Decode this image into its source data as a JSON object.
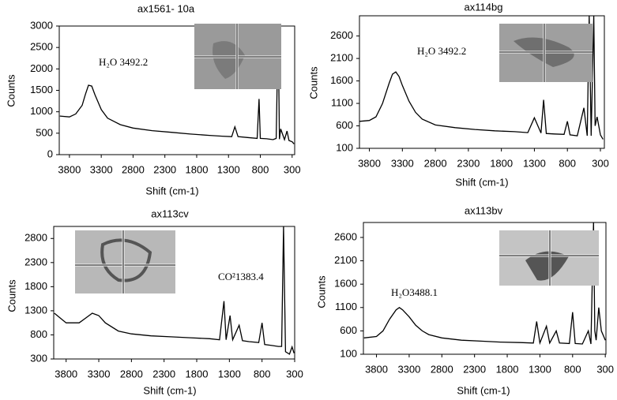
{
  "chart_data": [
    {
      "type": "line",
      "title": "ax1561- 10a",
      "xlabel": "Shift (cm-1)",
      "ylabel": "Counts",
      "annotation": "H₂O 3492.2",
      "color": "#000000",
      "xlim": [
        3960,
        260
      ],
      "xticks": [
        3800,
        3300,
        2800,
        2300,
        1800,
        1300,
        800,
        300
      ],
      "ylim": [
        0,
        3000
      ],
      "yticks": [
        0,
        500,
        1000,
        1500,
        2000,
        2500,
        3000
      ],
      "x": [
        3950,
        3800,
        3700,
        3600,
        3550,
        3500,
        3450,
        3400,
        3300,
        3200,
        3000,
        2800,
        2500,
        2200,
        1900,
        1600,
        1400,
        1250,
        1200,
        1150,
        1000,
        850,
        820,
        800,
        700,
        600,
        550,
        520,
        500,
        480,
        420,
        380,
        350,
        300,
        270
      ],
      "values": [
        900,
        880,
        950,
        1150,
        1400,
        1620,
        1600,
        1400,
        1050,
        850,
        700,
        620,
        560,
        520,
        480,
        450,
        430,
        420,
        650,
        420,
        400,
        380,
        1300,
        380,
        370,
        350,
        380,
        3000,
        360,
        600,
        350,
        550,
        330,
        300,
        250
      ]
    },
    {
      "type": "line",
      "title": "ax114bg",
      "xlabel": "Shift (cm-1)",
      "ylabel": "Counts",
      "annotation": "H₂O 3492.2",
      "color": "#000000",
      "xlim": [
        3950,
        240
      ],
      "xticks": [
        3800,
        3300,
        2800,
        2300,
        1800,
        1300,
        800,
        300
      ],
      "ylim": [
        100,
        3050
      ],
      "yticks": [
        100,
        600,
        1100,
        1600,
        2100,
        2600
      ],
      "x": [
        3950,
        3800,
        3700,
        3600,
        3500,
        3450,
        3400,
        3350,
        3300,
        3200,
        3100,
        3000,
        2800,
        2500,
        2200,
        1900,
        1600,
        1400,
        1300,
        1200,
        1160,
        1120,
        1000,
        850,
        800,
        760,
        650,
        550,
        500,
        470,
        440,
        400,
        380,
        350,
        300,
        260
      ],
      "values": [
        700,
        720,
        800,
        1100,
        1550,
        1750,
        1800,
        1700,
        1500,
        1150,
        900,
        750,
        620,
        560,
        520,
        490,
        470,
        450,
        780,
        440,
        1180,
        430,
        420,
        410,
        700,
        400,
        380,
        1000,
        380,
        3050,
        380,
        3050,
        600,
        800,
        400,
        300
      ]
    },
    {
      "type": "line",
      "title": "ax113cv",
      "xlabel": "Shift (cm-1)",
      "ylabel": "Counts",
      "annotation": "CO²1383.4",
      "color": "#000000",
      "xlim": [
        3990,
        300
      ],
      "xticks": [
        3800,
        3300,
        2800,
        2300,
        1800,
        1300,
        800,
        300
      ],
      "ylim": [
        300,
        3050
      ],
      "yticks": [
        300,
        800,
        1300,
        1800,
        2300,
        2800
      ],
      "x": [
        3980,
        3800,
        3600,
        3500,
        3400,
        3300,
        3200,
        3000,
        2800,
        2500,
        2200,
        1900,
        1600,
        1450,
        1383,
        1350,
        1290,
        1250,
        1150,
        1100,
        1000,
        850,
        800,
        760,
        650,
        550,
        500,
        470,
        440,
        380,
        340,
        310
      ],
      "values": [
        1250,
        1050,
        1050,
        1150,
        1250,
        1200,
        1050,
        880,
        820,
        780,
        760,
        740,
        720,
        700,
        1500,
        700,
        1200,
        700,
        1000,
        680,
        660,
        640,
        1050,
        600,
        580,
        560,
        560,
        3050,
        450,
        400,
        550,
        420
      ]
    },
    {
      "type": "line",
      "title": "ax113bv",
      "xlabel": "Shift (cm-1)",
      "ylabel": "Counts",
      "annotation": "H₂O3488.1",
      "color": "#000000",
      "xlim": [
        4000,
        290
      ],
      "xticks": [
        3800,
        3300,
        2800,
        2300,
        1800,
        1300,
        800,
        300
      ],
      "ylim": [
        100,
        2920
      ],
      "yticks": [
        100,
        600,
        1100,
        1600,
        2100,
        2600
      ],
      "x": [
        3990,
        3800,
        3700,
        3600,
        3500,
        3450,
        3400,
        3300,
        3200,
        3100,
        3000,
        2800,
        2500,
        2200,
        1900,
        1600,
        1400,
        1350,
        1300,
        1200,
        1150,
        1050,
        1000,
        850,
        800,
        760,
        650,
        560,
        520,
        480,
        460,
        440,
        400,
        360,
        330,
        300
      ],
      "values": [
        450,
        480,
        600,
        850,
        1050,
        1100,
        1050,
        900,
        720,
        600,
        520,
        450,
        400,
        380,
        360,
        350,
        340,
        800,
        340,
        700,
        340,
        600,
        340,
        330,
        1000,
        330,
        320,
        600,
        320,
        2920,
        600,
        400,
        1100,
        600,
        500,
        400
      ]
    }
  ]
}
